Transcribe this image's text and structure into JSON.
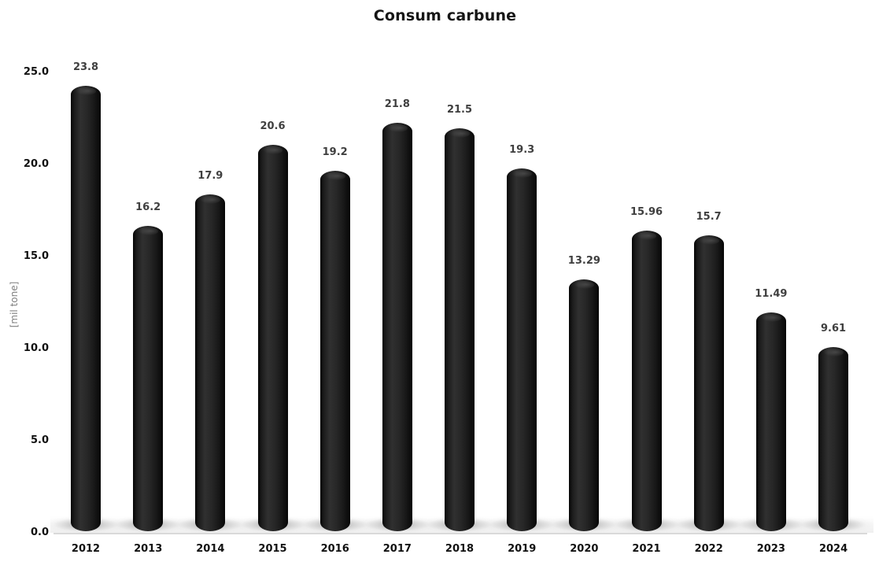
{
  "chart_data": {
    "type": "bar",
    "title": "Consum carbune",
    "xlabel": "",
    "ylabel": "[mil tone]",
    "categories": [
      "2012",
      "2013",
      "2014",
      "2015",
      "2016",
      "2017",
      "2018",
      "2019",
      "2020",
      "2021",
      "2022",
      "2023",
      "2024"
    ],
    "values": [
      23.8,
      16.2,
      17.9,
      20.6,
      19.2,
      21.8,
      21.5,
      19.3,
      13.29,
      15.96,
      15.7,
      11.49,
      9.61
    ],
    "data_labels": [
      "23.8",
      "16.2",
      "17.9",
      "20.6",
      "19.2",
      "21.8",
      "21.5",
      "19.3",
      "13.29",
      "15.96",
      "15.7",
      "11.49",
      "9.61"
    ],
    "yticks": [
      "0.0",
      "5.0",
      "10.0",
      "15.0",
      "20.0",
      "25.0"
    ],
    "ylim": [
      0,
      25
    ],
    "grid": false,
    "legend": "none",
    "bar_style": "cylinder",
    "colors": {
      "bar": "#1c1c1c",
      "data_label": "#3f3f3f",
      "axis_text": "#111111",
      "y_axis_title_text": "#7f7f7f",
      "axis_line": "#d9d9d9",
      "background": "#ffffff",
      "shadow": "#8c8c8c"
    }
  }
}
